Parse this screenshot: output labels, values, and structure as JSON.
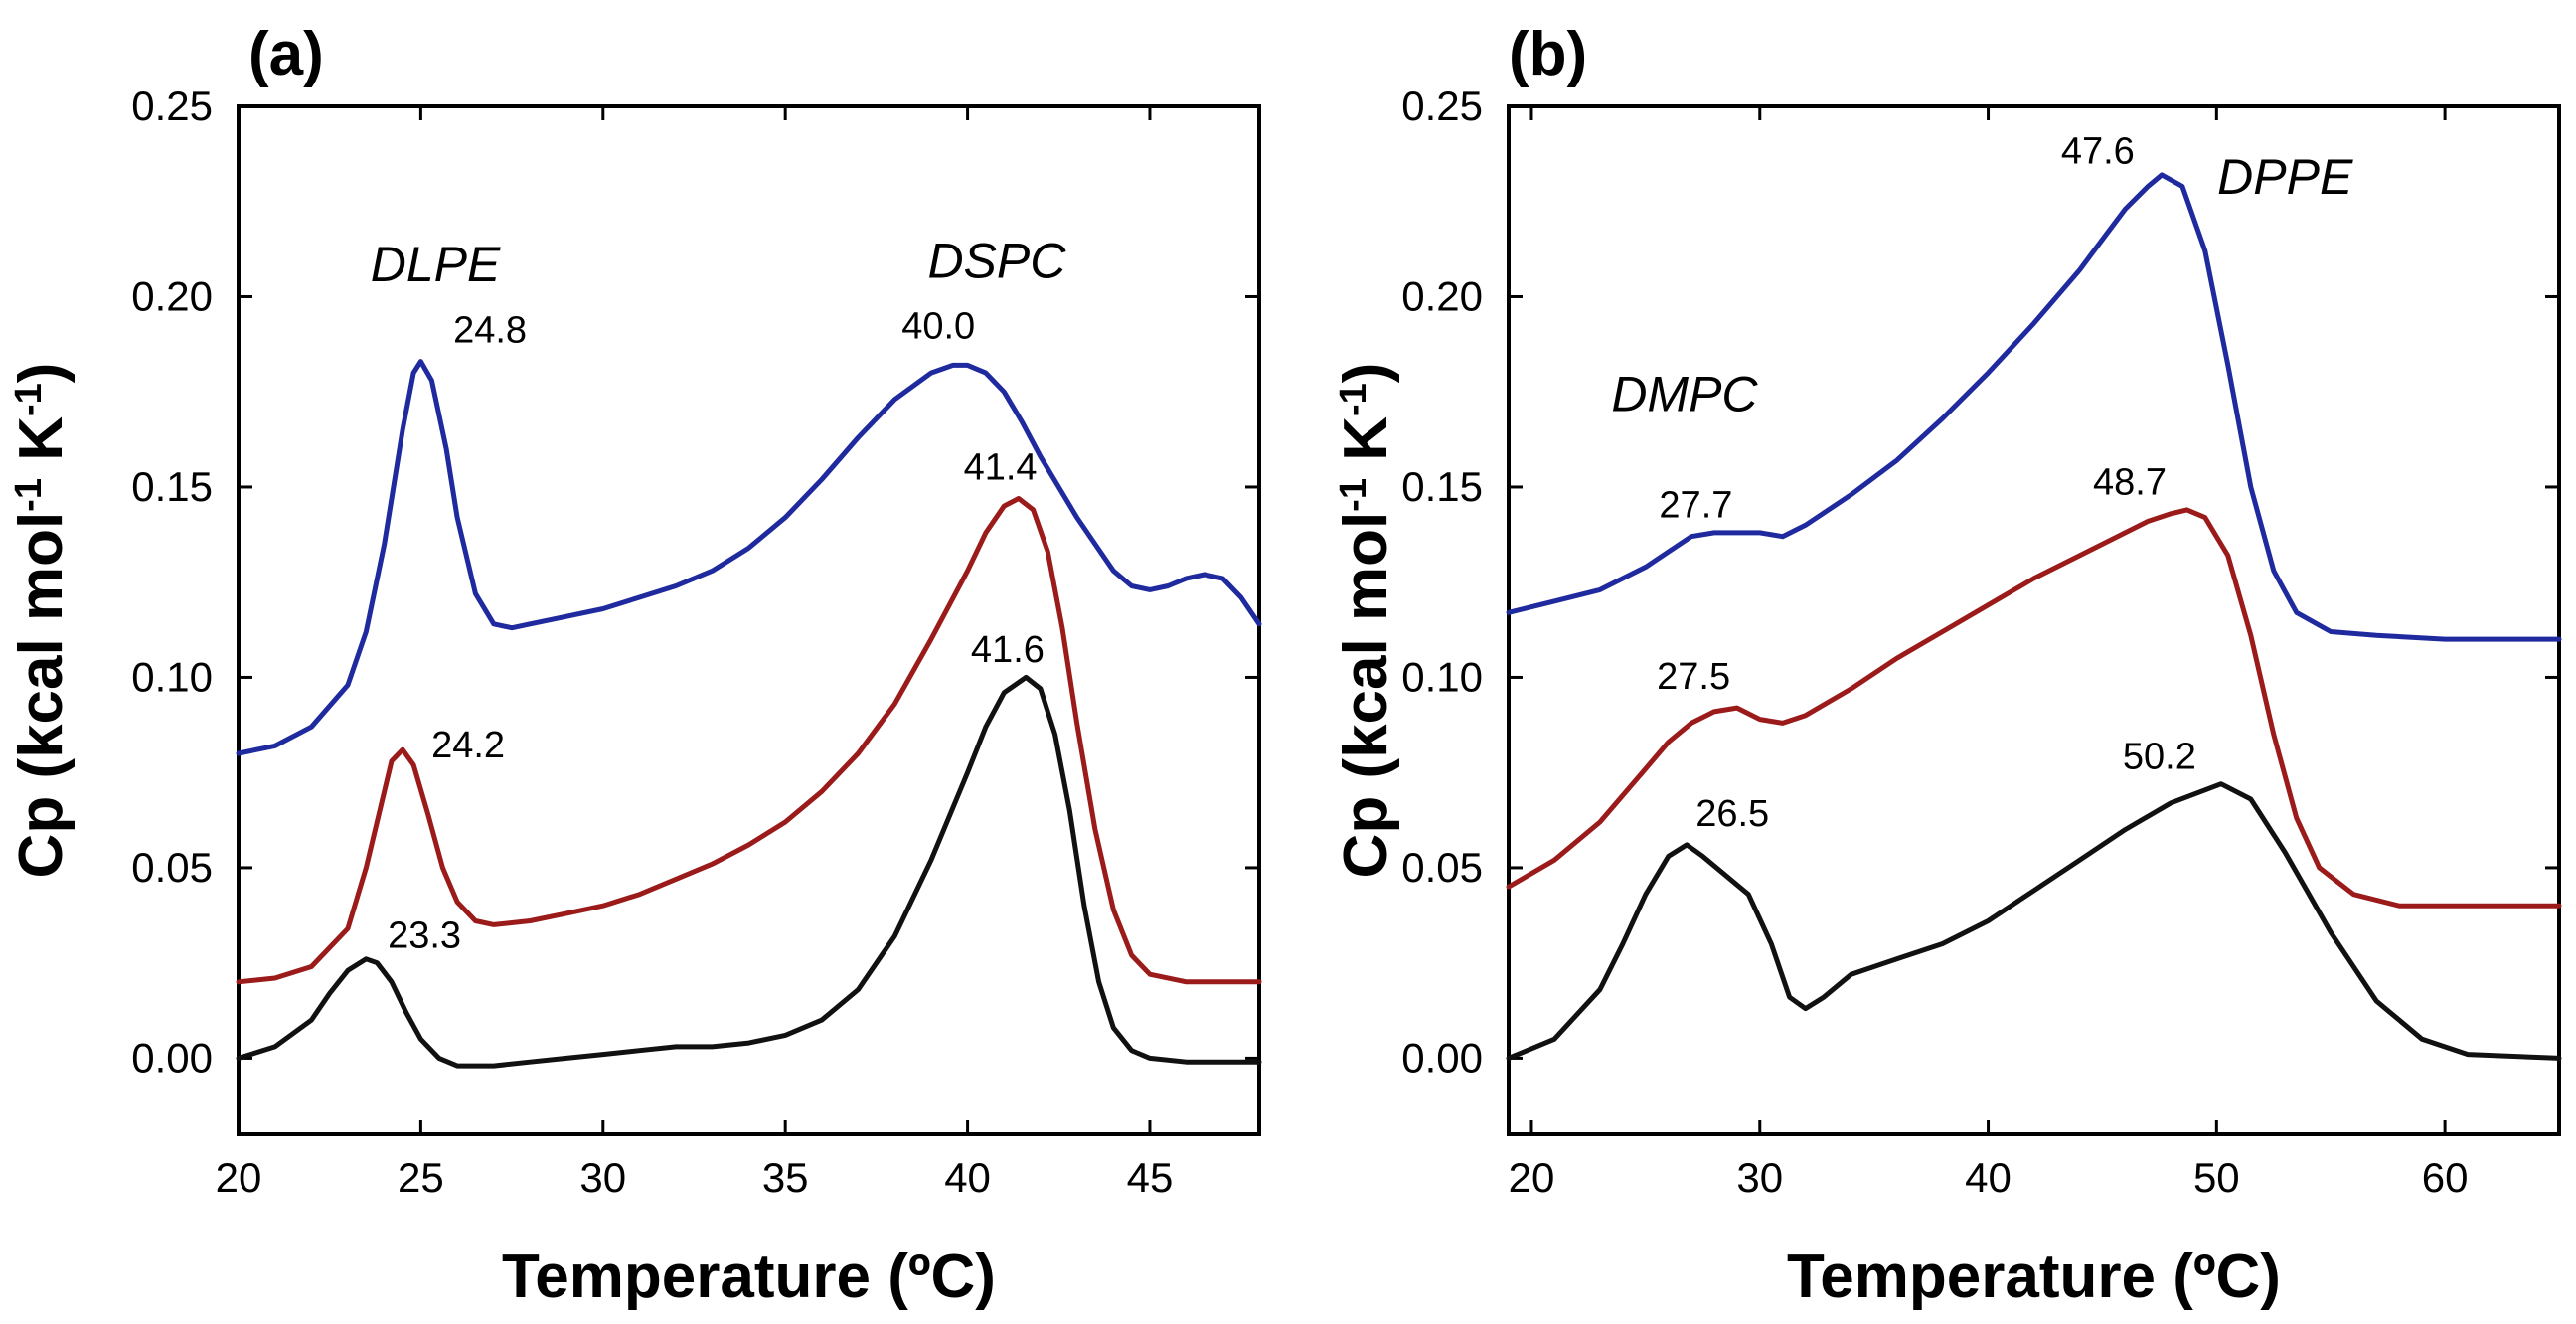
{
  "chart_data": [
    {
      "type": "line",
      "panel_label": "(a)",
      "xlabel": "Temperature (ºC)",
      "ylabel": "Cp (kcal mol-1 K-1)",
      "xlim": [
        20,
        48
      ],
      "ylim": [
        -0.02,
        0.25
      ],
      "x_ticks": [
        20,
        25,
        30,
        35,
        40,
        45
      ],
      "x_tick_labels": [
        "20",
        "25",
        "30",
        "35",
        "40",
        "45"
      ],
      "y_ticks": [
        0,
        0.05,
        0.1,
        0.15,
        0.2,
        0.25
      ],
      "y_tick_labels": [
        "0.00",
        "0.05",
        "0.10",
        "0.15",
        "0.20",
        "0.25"
      ],
      "annotations": [
        {
          "text": "DLPE",
          "kind": "compound",
          "x": 25.4,
          "y": 0.204
        },
        {
          "text": "DSPC",
          "kind": "compound",
          "x": 40.8,
          "y": 0.205
        },
        {
          "text": "24.8",
          "kind": "peak",
          "x": 26.9,
          "y": 0.188
        },
        {
          "text": "40.0",
          "kind": "peak",
          "x": 39.2,
          "y": 0.189
        },
        {
          "text": "41.4",
          "kind": "peak",
          "x": 40.9,
          "y": 0.152
        },
        {
          "text": "24.2",
          "kind": "peak",
          "x": 26.3,
          "y": 0.079
        },
        {
          "text": "41.6",
          "kind": "peak",
          "x": 41.1,
          "y": 0.104
        },
        {
          "text": "23.3",
          "kind": "peak",
          "x": 25.1,
          "y": 0.029
        }
      ],
      "series": [
        {
          "name": "blue",
          "color": "#1f2a9e",
          "x": [
            20,
            21,
            22,
            23,
            23.5,
            24,
            24.5,
            24.8,
            25,
            25.3,
            25.7,
            26,
            26.5,
            27,
            27.5,
            28,
            29,
            30,
            31,
            32,
            33,
            34,
            35,
            36,
            37,
            38,
            39,
            39.6,
            40,
            40.5,
            41,
            41.5,
            42,
            42.5,
            43,
            43.5,
            44,
            44.5,
            45,
            45.5,
            46,
            46.5,
            47,
            47.5,
            48
          ],
          "y": [
            0.08,
            0.082,
            0.087,
            0.098,
            0.112,
            0.135,
            0.165,
            0.18,
            0.183,
            0.178,
            0.16,
            0.142,
            0.122,
            0.114,
            0.113,
            0.114,
            0.116,
            0.118,
            0.121,
            0.124,
            0.128,
            0.134,
            0.142,
            0.152,
            0.163,
            0.173,
            0.18,
            0.182,
            0.182,
            0.18,
            0.175,
            0.167,
            0.158,
            0.15,
            0.142,
            0.135,
            0.128,
            0.124,
            0.123,
            0.124,
            0.126,
            0.127,
            0.126,
            0.121,
            0.114
          ]
        },
        {
          "name": "red",
          "color": "#9b1b1b",
          "x": [
            20,
            21,
            22,
            23,
            23.5,
            24,
            24.2,
            24.5,
            24.8,
            25.2,
            25.6,
            26,
            26.5,
            27,
            28,
            29,
            30,
            31,
            32,
            33,
            34,
            35,
            36,
            37,
            38,
            39,
            40,
            40.5,
            41,
            41.4,
            41.8,
            42.2,
            42.6,
            43,
            43.5,
            44,
            44.5,
            45,
            46,
            47,
            48
          ],
          "y": [
            0.02,
            0.021,
            0.024,
            0.034,
            0.05,
            0.07,
            0.078,
            0.081,
            0.077,
            0.064,
            0.05,
            0.041,
            0.036,
            0.035,
            0.036,
            0.038,
            0.04,
            0.043,
            0.047,
            0.051,
            0.056,
            0.062,
            0.07,
            0.08,
            0.093,
            0.11,
            0.128,
            0.138,
            0.145,
            0.147,
            0.144,
            0.133,
            0.113,
            0.088,
            0.06,
            0.039,
            0.027,
            0.022,
            0.02,
            0.02,
            0.02
          ]
        },
        {
          "name": "black",
          "color": "#111111",
          "x": [
            20,
            21,
            22,
            22.5,
            23,
            23.5,
            23.8,
            24.2,
            24.6,
            25,
            25.5,
            26,
            26.5,
            27,
            28,
            29,
            30,
            31,
            32,
            33,
            34,
            35,
            36,
            37,
            38,
            39,
            40,
            40.5,
            41,
            41.6,
            42,
            42.4,
            42.8,
            43.2,
            43.6,
            44,
            44.5,
            45,
            46,
            47,
            48
          ],
          "y": [
            0.0,
            0.003,
            0.01,
            0.017,
            0.023,
            0.026,
            0.025,
            0.02,
            0.012,
            0.005,
            0.0,
            -0.002,
            -0.002,
            -0.002,
            -0.001,
            0.0,
            0.001,
            0.002,
            0.003,
            0.003,
            0.004,
            0.006,
            0.01,
            0.018,
            0.032,
            0.052,
            0.075,
            0.087,
            0.096,
            0.1,
            0.097,
            0.085,
            0.065,
            0.04,
            0.02,
            0.008,
            0.002,
            0.0,
            -0.001,
            -0.001,
            -0.001
          ]
        }
      ]
    },
    {
      "type": "line",
      "panel_label": "(b)",
      "xlabel": "Temperature (ºC)",
      "ylabel": "Cp (kcal mol-1 K-1)",
      "xlim": [
        19,
        65
      ],
      "ylim": [
        -0.02,
        0.25
      ],
      "x_ticks": [
        20,
        30,
        40,
        50,
        60
      ],
      "x_tick_labels": [
        "20",
        "30",
        "40",
        "50",
        "60"
      ],
      "y_ticks": [
        0,
        0.05,
        0.1,
        0.15,
        0.2,
        0.25
      ],
      "y_tick_labels": [
        "0.00",
        "0.05",
        "0.10",
        "0.15",
        "0.20",
        "0.25"
      ],
      "annotations": [
        {
          "text": "DPPE",
          "kind": "compound",
          "x": 53.0,
          "y": 0.227
        },
        {
          "text": "DMPC",
          "kind": "compound",
          "x": 26.7,
          "y": 0.17
        },
        {
          "text": "47.6",
          "kind": "peak",
          "x": 44.8,
          "y": 0.235
        },
        {
          "text": "27.7",
          "kind": "peak",
          "x": 27.2,
          "y": 0.142
        },
        {
          "text": "48.7",
          "kind": "peak",
          "x": 46.2,
          "y": 0.148
        },
        {
          "text": "27.5",
          "kind": "peak",
          "x": 27.1,
          "y": 0.097
        },
        {
          "text": "50.2",
          "kind": "peak",
          "x": 47.5,
          "y": 0.076
        },
        {
          "text": "26.5",
          "kind": "peak",
          "x": 28.8,
          "y": 0.061
        }
      ],
      "series": [
        {
          "name": "blue",
          "color": "#1f2a9e",
          "x": [
            19,
            21,
            23,
            25,
            26,
            27,
            28,
            29,
            30,
            31,
            32,
            34,
            36,
            38,
            40,
            42,
            44,
            45,
            46,
            47,
            47.6,
            48.5,
            49.5,
            50.5,
            51.5,
            52.5,
            53.5,
            55,
            57,
            60,
            65
          ],
          "y": [
            0.117,
            0.12,
            0.123,
            0.129,
            0.133,
            0.137,
            0.138,
            0.138,
            0.138,
            0.137,
            0.14,
            0.148,
            0.157,
            0.168,
            0.18,
            0.193,
            0.207,
            0.215,
            0.223,
            0.229,
            0.232,
            0.229,
            0.212,
            0.182,
            0.15,
            0.128,
            0.117,
            0.112,
            0.111,
            0.11,
            0.11
          ]
        },
        {
          "name": "red",
          "color": "#9b1b1b",
          "x": [
            19,
            21,
            23,
            25,
            26,
            27,
            28,
            29,
            30,
            31,
            32,
            34,
            36,
            38,
            40,
            42,
            44,
            46,
            47,
            48,
            48.7,
            49.5,
            50.5,
            51.5,
            52.5,
            53.5,
            54.5,
            56,
            58,
            60,
            65
          ],
          "y": [
            0.045,
            0.052,
            0.062,
            0.076,
            0.083,
            0.088,
            0.091,
            0.092,
            0.089,
            0.088,
            0.09,
            0.097,
            0.105,
            0.112,
            0.119,
            0.126,
            0.132,
            0.138,
            0.141,
            0.143,
            0.144,
            0.142,
            0.132,
            0.111,
            0.085,
            0.063,
            0.05,
            0.043,
            0.04,
            0.04,
            0.04
          ]
        },
        {
          "name": "black",
          "color": "#111111",
          "x": [
            19,
            21,
            23,
            24,
            25,
            26,
            26.8,
            27.5,
            28.5,
            29.5,
            30.5,
            31.3,
            32,
            32.8,
            34,
            36,
            38,
            40,
            42,
            44,
            46,
            48,
            50.2,
            51.5,
            53,
            55,
            57,
            59,
            61,
            65
          ],
          "y": [
            0.0,
            0.005,
            0.018,
            0.03,
            0.043,
            0.053,
            0.056,
            0.053,
            0.048,
            0.043,
            0.03,
            0.016,
            0.013,
            0.016,
            0.022,
            0.026,
            0.03,
            0.036,
            0.044,
            0.052,
            0.06,
            0.067,
            0.072,
            0.068,
            0.054,
            0.033,
            0.015,
            0.005,
            0.001,
            0.0
          ]
        }
      ]
    }
  ]
}
